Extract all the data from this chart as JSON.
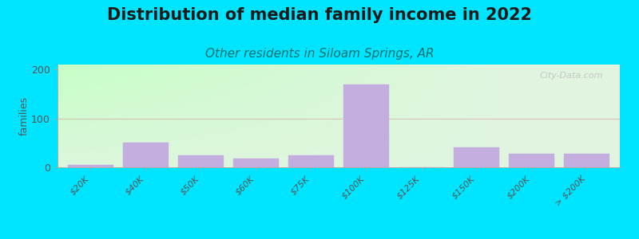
{
  "title": "Distribution of median family income in 2022",
  "subtitle": "Other residents in Siloam Springs, AR",
  "ylabel": "families",
  "categories": [
    "$20K",
    "$40K",
    "$50K",
    "$60K",
    "$75K",
    "$100K",
    "$125K",
    "$150K",
    "$200K",
    "> $200K"
  ],
  "values": [
    5,
    50,
    25,
    18,
    25,
    170,
    0,
    40,
    28,
    28
  ],
  "bar_color": "#c4aee0",
  "background_outer": "#00e5ff",
  "plot_bg_color_topleft": "#c8efc8",
  "plot_bg_color_right": "#f0f0f0",
  "grid_color": "#e0a0b0",
  "ylim": [
    0,
    210
  ],
  "yticks": [
    0,
    100,
    200
  ],
  "title_fontsize": 15,
  "subtitle_fontsize": 11,
  "ylabel_fontsize": 9,
  "tick_fontsize": 8,
  "watermark": "City-Data.com"
}
